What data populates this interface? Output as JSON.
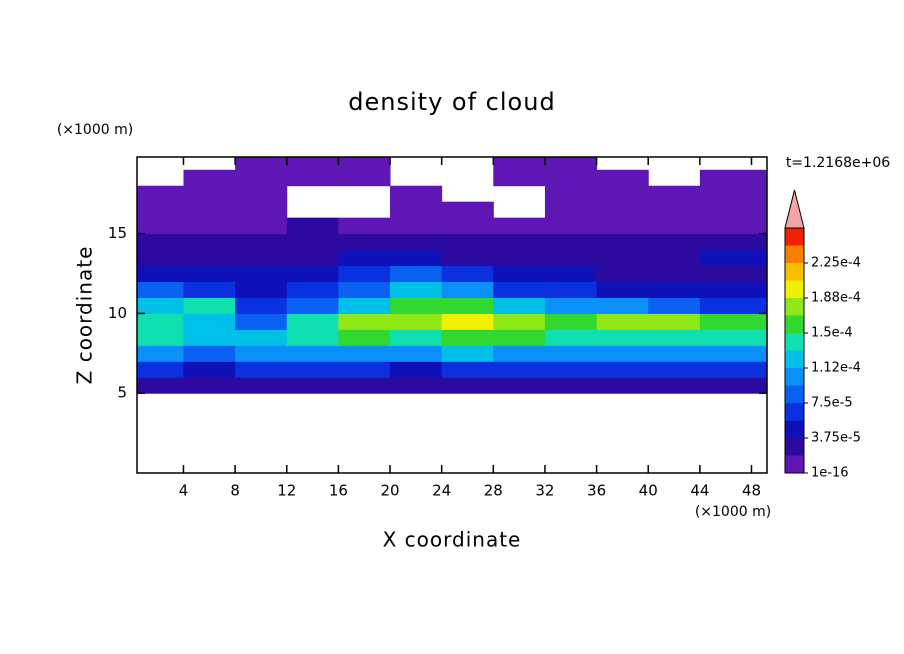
{
  "chart_data": {
    "type": "contour",
    "title": "density of cloud",
    "xlabel": "X coordinate",
    "ylabel": "Z coordinate",
    "x_unit": "(×1000 m)",
    "y_unit": "(×1000 m)",
    "annotation": "t=1.2168e+06",
    "xlim": [
      0.4,
      49.2
    ],
    "ylim": [
      0,
      19.8
    ],
    "xticks": [
      4,
      8,
      12,
      16,
      20,
      24,
      28,
      32,
      36,
      40,
      44,
      48
    ],
    "yticks": [
      5,
      10,
      15
    ],
    "x": [
      2,
      6,
      10,
      14,
      18,
      22,
      26,
      30,
      34,
      38,
      42,
      46
    ],
    "z": [
      5.5,
      6.5,
      7.5,
      8.5,
      9.5,
      10.5,
      11.5,
      12.5,
      13.5,
      14.5,
      15.5,
      16.5,
      17.5,
      18.5,
      19.5
    ],
    "values": [
      [
        2e-05,
        3e-05,
        2e-05,
        2e-05,
        2e-05,
        3e-05,
        2e-05,
        2e-05,
        2e-05,
        2e-05,
        2e-05,
        2e-05
      ],
      [
        6e-05,
        4e-05,
        6e-05,
        6e-05,
        6e-05,
        5e-05,
        6e-05,
        6e-05,
        6e-05,
        6e-05,
        6e-05,
        6e-05
      ],
      [
        0.00011,
        9e-05,
        0.0001,
        0.00011,
        0.00011,
        0.000105,
        0.000115,
        0.00011,
        0.000105,
        0.00011,
        0.00011,
        0.00011
      ],
      [
        0.00014,
        0.00012,
        0.00013,
        0.00014,
        0.00015,
        0.000145,
        0.000155,
        0.00015,
        0.00014,
        0.000145,
        0.000145,
        0.00014
      ],
      [
        0.000135,
        0.000125,
        9e-05,
        0.000145,
        0.00017,
        0.000175,
        0.00019,
        0.00018,
        0.00016,
        0.00017,
        0.000175,
        0.00016
      ],
      [
        0.00013,
        0.00014,
        6e-05,
        9e-05,
        0.00013,
        0.00015,
        0.000155,
        0.00013,
        0.0001,
        0.00011,
        9e-05,
        7e-05
      ],
      [
        8e-05,
        7e-05,
        5e-05,
        7e-05,
        9e-05,
        0.00012,
        0.0001,
        7e-05,
        6e-05,
        5e-05,
        4e-05,
        4e-05
      ],
      [
        5e-05,
        4e-05,
        4e-05,
        4e-05,
        6e-05,
        8e-05,
        6e-05,
        4e-05,
        4e-05,
        3e-05,
        3e-05,
        3e-05
      ],
      [
        3e-05,
        3e-05,
        3e-05,
        3e-05,
        4e-05,
        4e-05,
        3e-05,
        3e-05,
        3e-05,
        3e-05,
        3e-05,
        4e-05
      ],
      [
        2e-05,
        2e-05,
        2e-05,
        2e-05,
        2e-05,
        2e-05,
        2e-05,
        2e-05,
        2e-05,
        2e-05,
        2e-05,
        2e-05
      ],
      [
        1e-05,
        1e-05,
        1.5e-05,
        2e-05,
        1.5e-05,
        1e-05,
        1e-05,
        1e-05,
        1e-05,
        1e-05,
        1e-05,
        1e-05
      ],
      [
        5e-06,
        5e-06,
        5e-06,
        null,
        null,
        5e-06,
        5e-06,
        null,
        5e-06,
        5e-06,
        5e-06,
        5e-06
      ],
      [
        5e-06,
        5e-06,
        5e-06,
        null,
        null,
        5e-06,
        null,
        null,
        5e-06,
        5e-06,
        5e-06,
        5e-06
      ],
      [
        null,
        5e-06,
        5e-06,
        5e-06,
        5e-06,
        null,
        null,
        5e-06,
        5e-06,
        5e-06,
        null,
        5e-06
      ],
      [
        null,
        null,
        5e-06,
        5e-06,
        5e-06,
        null,
        null,
        5e-06,
        5e-06,
        null,
        null,
        null
      ]
    ],
    "colorbar": {
      "levels": [
        1e-16,
        1.875e-05,
        3.75e-05,
        5.625e-05,
        7.5e-05,
        9.375e-05,
        0.0001125,
        0.00013125,
        0.00015,
        0.00016875,
        0.0001875,
        0.00020625,
        0.000225,
        0.00024375,
        0.0002625
      ],
      "colors": [
        "#5e17b5",
        "#2c0aa0",
        "#1010b8",
        "#0a30e0",
        "#0a60f0",
        "#0a90f8",
        "#00c0e8",
        "#10e0b0",
        "#30d830",
        "#90e818",
        "#f0f000",
        "#f8c000",
        "#f88000",
        "#f02000"
      ],
      "extend_color": "#f4a4a4",
      "ticks": [
        {
          "value": 1e-16,
          "label": "1e-16"
        },
        {
          "value": 3.75e-05,
          "label": "3.75e-5"
        },
        {
          "value": 7.5e-05,
          "label": "7.5e-5"
        },
        {
          "value": 0.0001125,
          "label": "1.12e-4"
        },
        {
          "value": 0.00015,
          "label": "1.5e-4"
        },
        {
          "value": 0.0001875,
          "label": "1.88e-4"
        },
        {
          "value": 0.000225,
          "label": "2.25e-4"
        }
      ]
    }
  }
}
